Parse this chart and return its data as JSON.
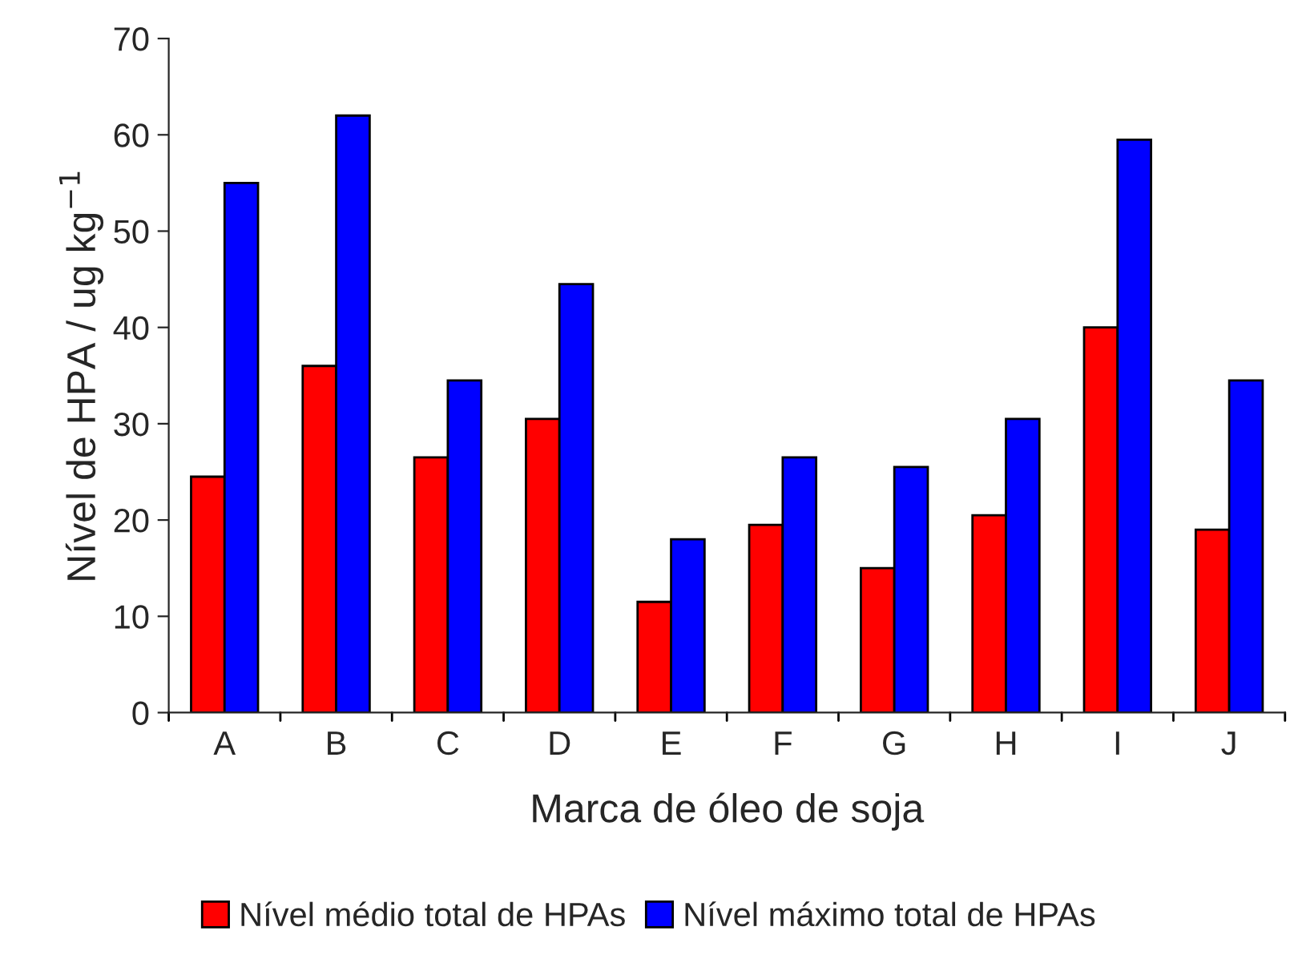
{
  "chart_data": {
    "type": "bar",
    "xlabel": "Marca de óleo de soja",
    "ylabel": "Nível de HPA / ug kg$^{−1}$",
    "categories": [
      "A",
      "B",
      "C",
      "D",
      "E",
      "F",
      "G",
      "H",
      "I",
      "J"
    ],
    "series": [
      {
        "name": "Nível médio total de HPAs",
        "color": "#ff0000",
        "values": [
          24.5,
          36,
          26.5,
          30.5,
          11.5,
          19.5,
          15,
          20.5,
          40,
          19
        ]
      },
      {
        "name": "Nível máximo total de HPAs",
        "color": "#0000ff",
        "values": [
          55,
          62,
          34.5,
          44.5,
          18,
          26.5,
          25.5,
          30.5,
          59.5,
          34.5
        ]
      }
    ],
    "ylim": [
      0,
      70
    ],
    "yticks": [
      0,
      10,
      20,
      30,
      40,
      50,
      60,
      70
    ],
    "grid": false,
    "legend": "bottom"
  }
}
